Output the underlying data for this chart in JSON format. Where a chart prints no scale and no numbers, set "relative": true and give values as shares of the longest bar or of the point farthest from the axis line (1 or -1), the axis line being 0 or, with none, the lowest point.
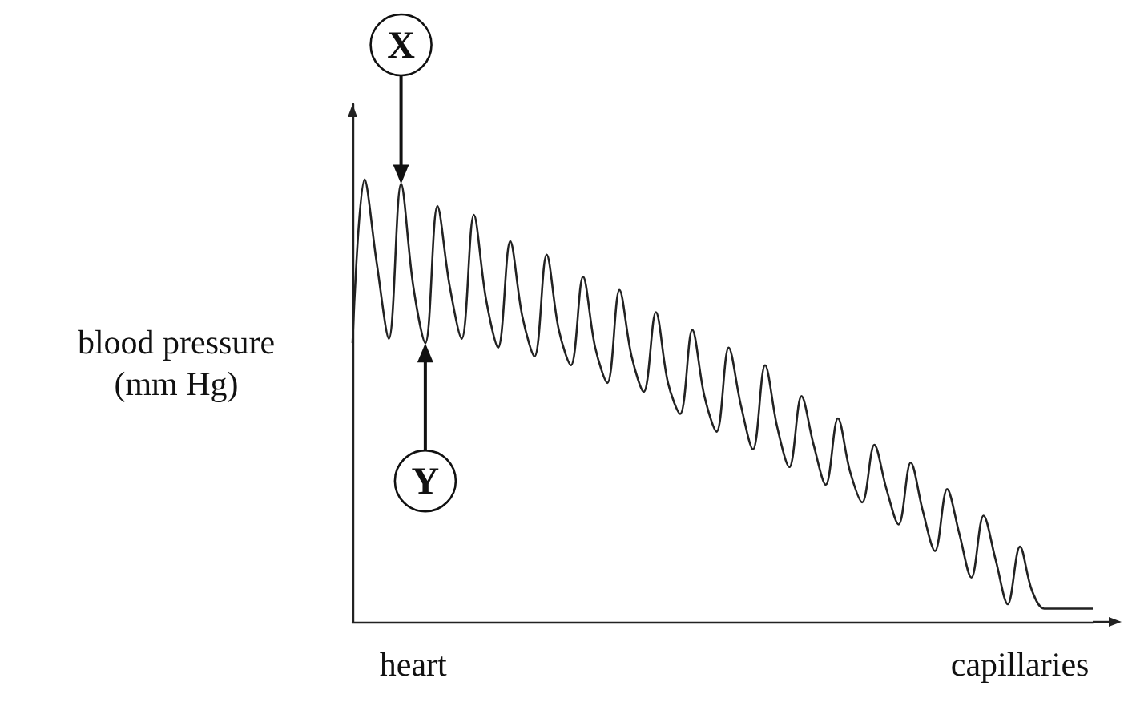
{
  "chart_data": {
    "type": "line",
    "relative": true,
    "ylabel": "blood pressure\n(mm Hg)",
    "categories": [
      null,
      null,
      null,
      null,
      null,
      "heart",
      null,
      null,
      null,
      null,
      null,
      null,
      null,
      null,
      null,
      null,
      null,
      null,
      null,
      null,
      null,
      null,
      null,
      null,
      null,
      null,
      null,
      null,
      null,
      null,
      null,
      null,
      null,
      null,
      null,
      null,
      null,
      null,
      null,
      null,
      null,
      null,
      null,
      null,
      null,
      null,
      null,
      null,
      null,
      null,
      null,
      null,
      null,
      null,
      null,
      "capillaries",
      null,
      null,
      null,
      null,
      null,
      null
    ],
    "series": [
      {
        "color": "#222222",
        "values": [
          0.63,
          1,
          0.81,
          0.64,
          0.99,
          0.76,
          0.63,
          0.94,
          0.76,
          0.64,
          0.92,
          0.73,
          0.62,
          0.86,
          0.69,
          0.6,
          0.83,
          0.66,
          0.58,
          0.78,
          0.62,
          0.54,
          0.75,
          0.6,
          0.52,
          0.7,
          0.54,
          0.47,
          0.66,
          0.51,
          0.43,
          0.62,
          0.49,
          0.39,
          0.58,
          0.44,
          0.35,
          0.51,
          0.4,
          0.31,
          0.46,
          0.34,
          0.27,
          0.4,
          0.3,
          0.22,
          0.36,
          0.25,
          0.16,
          0.3,
          0.2,
          0.1,
          0.24,
          0.14,
          0.04,
          0.17,
          0.07,
          0.03,
          0.03,
          0.03,
          0.03,
          0.03
        ]
      }
    ],
    "annotations": [
      "X",
      "Y"
    ],
    "grid": false,
    "marker": "none",
    "line_style": "solid"
  }
}
